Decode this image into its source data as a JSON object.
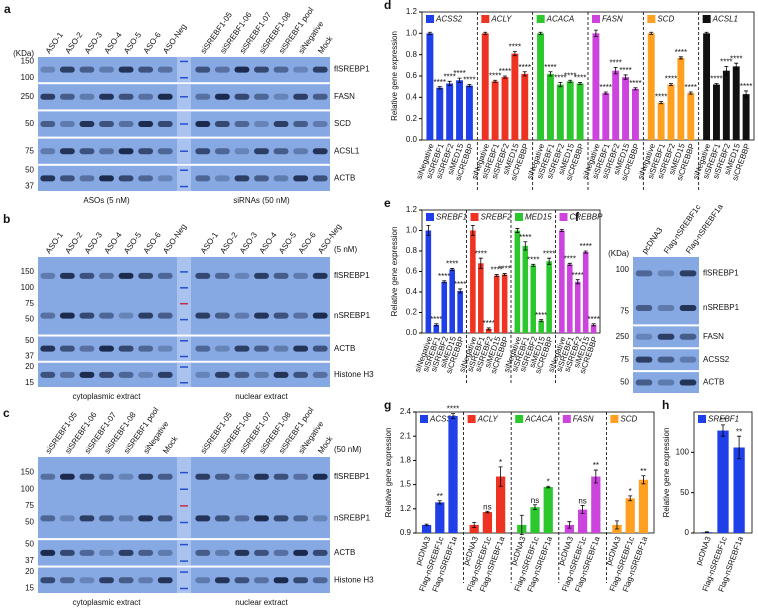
{
  "blots": [
    {
      "label": "a",
      "kda": "(KDa)",
      "lanes": [
        [
          "ASO-1",
          "ASO-2",
          "ASO-3",
          "ASO-4",
          "ASO-5",
          "ASO-6",
          "ASO-Neg"
        ],
        [
          "siSREBF1-05",
          "siSREBF1-06",
          "siSREBF1-07",
          "siSREBF1-08",
          "siSREBF1 pool",
          "siNegative",
          "Mock"
        ]
      ],
      "strips": [
        {
          "bands": [
            "flSREBP1"
          ],
          "markers": [
            150,
            100
          ]
        },
        {
          "bands": [
            "FASN"
          ],
          "markers": [
            250
          ]
        },
        {
          "bands": [
            "SCD"
          ],
          "markers": [
            50
          ]
        },
        {
          "bands": [
            "ACSL1"
          ],
          "markers": [
            75
          ]
        },
        {
          "bands": [
            "ACTB"
          ],
          "markers": [
            50,
            37
          ]
        }
      ],
      "footers": [
        "ASOs (5 nM)",
        "siRNAs (50 nM)"
      ]
    },
    {
      "label": "b",
      "conc": "(5 nM)",
      "lanes": [
        [
          "ASO-1",
          "ASO-2",
          "ASO-3",
          "ASO-4",
          "ASO-5",
          "ASO-6",
          "ASO-Neg"
        ],
        [
          "ASO-1",
          "ASO-2",
          "ASO-3",
          "ASO-4",
          "ASO-5",
          "ASO-6",
          "ASO-Neg"
        ]
      ],
      "strips": [
        {
          "bands": [
            "flSREBP1",
            "nSREBP1"
          ],
          "markers": [
            150,
            100,
            75,
            50
          ]
        },
        {
          "bands": [
            "ACTB"
          ],
          "markers": [
            50,
            37
          ]
        },
        {
          "bands": [
            "Histone H3"
          ],
          "markers": [
            20,
            15
          ]
        }
      ],
      "footers": [
        "cytoplasmic extract",
        "nuclear extract"
      ]
    },
    {
      "label": "c",
      "conc": "(50 nM)",
      "lanes": [
        [
          "siSREBF1-05",
          "siSREBF1-06",
          "siSREBF1-07",
          "siSREBF1-08",
          "siSREBF1 pool",
          "siNegative",
          "Mock"
        ],
        [
          "siSREBF1-05",
          "siSREBF1-06",
          "siSREBF1-07",
          "siSREBF1-08",
          "siSREBF1 pool",
          "siNegative",
          "Mock"
        ]
      ],
      "strips": [
        {
          "bands": [
            "flSREBP1",
            "nSREBP1"
          ],
          "markers": [
            150,
            100,
            75,
            50
          ]
        },
        {
          "bands": [
            "ACTB"
          ],
          "markers": [
            50,
            37
          ]
        },
        {
          "bands": [
            "Histone H3"
          ],
          "markers": [
            20,
            15
          ]
        }
      ],
      "footers": [
        "cytoplasmic extract",
        "nuclear extract"
      ]
    },
    {
      "label": "f",
      "kda": "(KDa)",
      "lanes": [
        [
          "pcDNA3",
          "Flag-nSREBF1c",
          "Flag-nSREBF1a"
        ]
      ],
      "strips": [
        {
          "bands": [
            "flSREBP1",
            "nSREBP1"
          ],
          "markers": [
            100,
            75
          ]
        },
        {
          "bands": [
            "FASN"
          ],
          "markers": [
            250
          ]
        },
        {
          "bands": [
            "ACSS2"
          ],
          "markers": [
            75
          ]
        },
        {
          "bands": [
            "ACTB"
          ],
          "markers": [
            50
          ]
        }
      ]
    }
  ],
  "chart_data": [
    {
      "type": "bar",
      "label": "d",
      "ylabel": "Relative gene expression",
      "ylim": [
        0,
        1.2
      ],
      "yticks": [
        {
          "value": 0,
          "label": "0.0"
        },
        0.2,
        0.4,
        0.6,
        0.8,
        {
          "value": 1,
          "label": "1.0"
        },
        1.2
      ],
      "categories": [
        "siNegative",
        "siSREBF1",
        "siSREBF2",
        "siMED15",
        "siCREBBP"
      ],
      "series": [
        {
          "name": "ACSS2",
          "color": "#1f3fe8",
          "values": [
            1.0,
            0.49,
            0.53,
            0.56,
            0.51
          ],
          "errors": [
            0.01,
            0.01,
            0.02,
            0.02,
            0.01
          ],
          "sig": [
            null,
            "****",
            "****",
            "****",
            "****"
          ]
        },
        {
          "name": "ACLY",
          "color": "#ee3322",
          "values": [
            1.0,
            0.55,
            0.59,
            0.81,
            0.62
          ],
          "errors": [
            0.01,
            0.01,
            0.01,
            0.02,
            0.02
          ],
          "sig": [
            null,
            "****",
            "****",
            "****",
            "****"
          ]
        },
        {
          "name": "ACACA",
          "color": "#2cc72c",
          "values": [
            1.0,
            0.62,
            0.52,
            0.55,
            0.53
          ],
          "errors": [
            0.01,
            0.02,
            0.02,
            0.01,
            0.01
          ],
          "sig": [
            null,
            "****",
            "****",
            "****",
            "****"
          ]
        },
        {
          "name": "FASN",
          "color": "#cc44dd",
          "values": [
            1.0,
            0.44,
            0.65,
            0.59,
            0.48
          ],
          "errors": [
            0.03,
            0.01,
            0.03,
            0.02,
            0.01
          ],
          "sig": [
            null,
            "****",
            "****",
            "****",
            "****"
          ]
        },
        {
          "name": "SCD",
          "color": "#ffa020",
          "values": [
            1.0,
            0.35,
            0.52,
            0.77,
            0.44
          ],
          "errors": [
            0.01,
            0.01,
            0.01,
            0.01,
            0.01
          ],
          "sig": [
            null,
            "****",
            "****",
            "****",
            "****"
          ]
        },
        {
          "name": "ACSL1",
          "color": "#111111",
          "values": [
            1.0,
            0.52,
            0.65,
            0.69,
            0.43
          ],
          "errors": [
            0.01,
            0.01,
            0.04,
            0.03,
            0.03
          ],
          "sig": [
            null,
            "****",
            "****",
            "****",
            "****"
          ]
        }
      ]
    },
    {
      "type": "bar",
      "label": "e",
      "ylabel": "Relative gene expression",
      "ylim": [
        0,
        1.2
      ],
      "yticks": [
        {
          "value": 0,
          "label": "0.0"
        },
        0.2,
        0.4,
        0.6,
        0.8,
        {
          "value": 1,
          "label": "1.0"
        },
        1.2
      ],
      "categories": [
        "siNegative",
        "siSREBF1",
        "siSREBF2",
        "siMED15",
        "siCREBBP"
      ],
      "series": [
        {
          "name": "SREBF1",
          "color": "#1f3fe8",
          "values": [
            1.0,
            0.08,
            0.5,
            0.62,
            0.41
          ],
          "errors": [
            0.05,
            0.01,
            0.01,
            0.01,
            0.02
          ],
          "sig": [
            null,
            "****",
            "****",
            "****",
            "****"
          ]
        },
        {
          "name": "SREBF2",
          "color": "#ee3322",
          "values": [
            1.0,
            0.68,
            0.04,
            0.56,
            0.57
          ],
          "errors": [
            0.05,
            0.05,
            0.01,
            0.01,
            0.01
          ],
          "sig": [
            null,
            "****",
            "****",
            "****",
            "****"
          ]
        },
        {
          "name": "MED15",
          "color": "#2cc72c",
          "values": [
            1.0,
            0.85,
            0.66,
            0.12,
            0.7
          ],
          "errors": [
            0.02,
            0.04,
            0.01,
            0.01,
            0.03
          ],
          "sig": [
            null,
            "****",
            "****",
            "****",
            "****"
          ]
        },
        {
          "name": "CREBBP",
          "color": "#cc44dd",
          "values": [
            1.0,
            0.67,
            0.5,
            0.79,
            0.08
          ],
          "errors": [
            0.01,
            0.01,
            0.02,
            0.01,
            0.01
          ],
          "sig": [
            null,
            "****",
            "****",
            "****",
            "****"
          ]
        }
      ]
    },
    {
      "type": "bar",
      "label": "g",
      "ylabel": "Relative gene expression",
      "ylim": [
        0.9,
        2.4
      ],
      "yticks": [
        0.9,
        1.2,
        1.5,
        1.8,
        2.1,
        2.4
      ],
      "categories": [
        "pcDNA3",
        "Flag-nSREBF1c",
        "Flag-nSREBF1a"
      ],
      "series": [
        {
          "name": "ACSS2",
          "color": "#1f3fe8",
          "values": [
            1.0,
            1.28,
            2.35
          ],
          "errors": [
            0.01,
            0.02,
            0.03
          ],
          "sig": [
            null,
            "**",
            "****"
          ]
        },
        {
          "name": "ACLY",
          "color": "#ee3322",
          "values": [
            1.0,
            1.16,
            1.6
          ],
          "errors": [
            0.03,
            0.01,
            0.12
          ],
          "sig": [
            null,
            "ns",
            "*"
          ]
        },
        {
          "name": "ACACA",
          "color": "#2cc72c",
          "values": [
            1.0,
            1.22,
            1.47
          ],
          "errors": [
            0.12,
            0.03,
            0.01
          ],
          "sig": [
            null,
            "ns",
            "*"
          ]
        },
        {
          "name": "FASN",
          "color": "#cc44dd",
          "values": [
            1.0,
            1.19,
            1.6
          ],
          "errors": [
            0.04,
            0.05,
            0.08
          ],
          "sig": [
            null,
            "ns",
            "**"
          ]
        },
        {
          "name": "SCD",
          "color": "#ffa020",
          "values": [
            1.0,
            1.33,
            1.56
          ],
          "errors": [
            0.05,
            0.03,
            0.05
          ],
          "sig": [
            null,
            "*",
            "**"
          ]
        }
      ]
    },
    {
      "type": "bar",
      "label": "h",
      "ylabel": "Relative gene expression",
      "ylim": [
        0,
        150
      ],
      "yticks": [
        0,
        50,
        100
      ],
      "categories": [
        "pcDNA3",
        "Flag-nSREBF1c",
        "Flag-nSREBF1a"
      ],
      "series": [
        {
          "name": "SREBF1",
          "color": "#1f3fe8",
          "values": [
            1,
            127,
            106
          ],
          "errors": [
            0.5,
            7,
            14
          ],
          "sig": [
            null,
            "**",
            "**"
          ]
        }
      ]
    }
  ]
}
